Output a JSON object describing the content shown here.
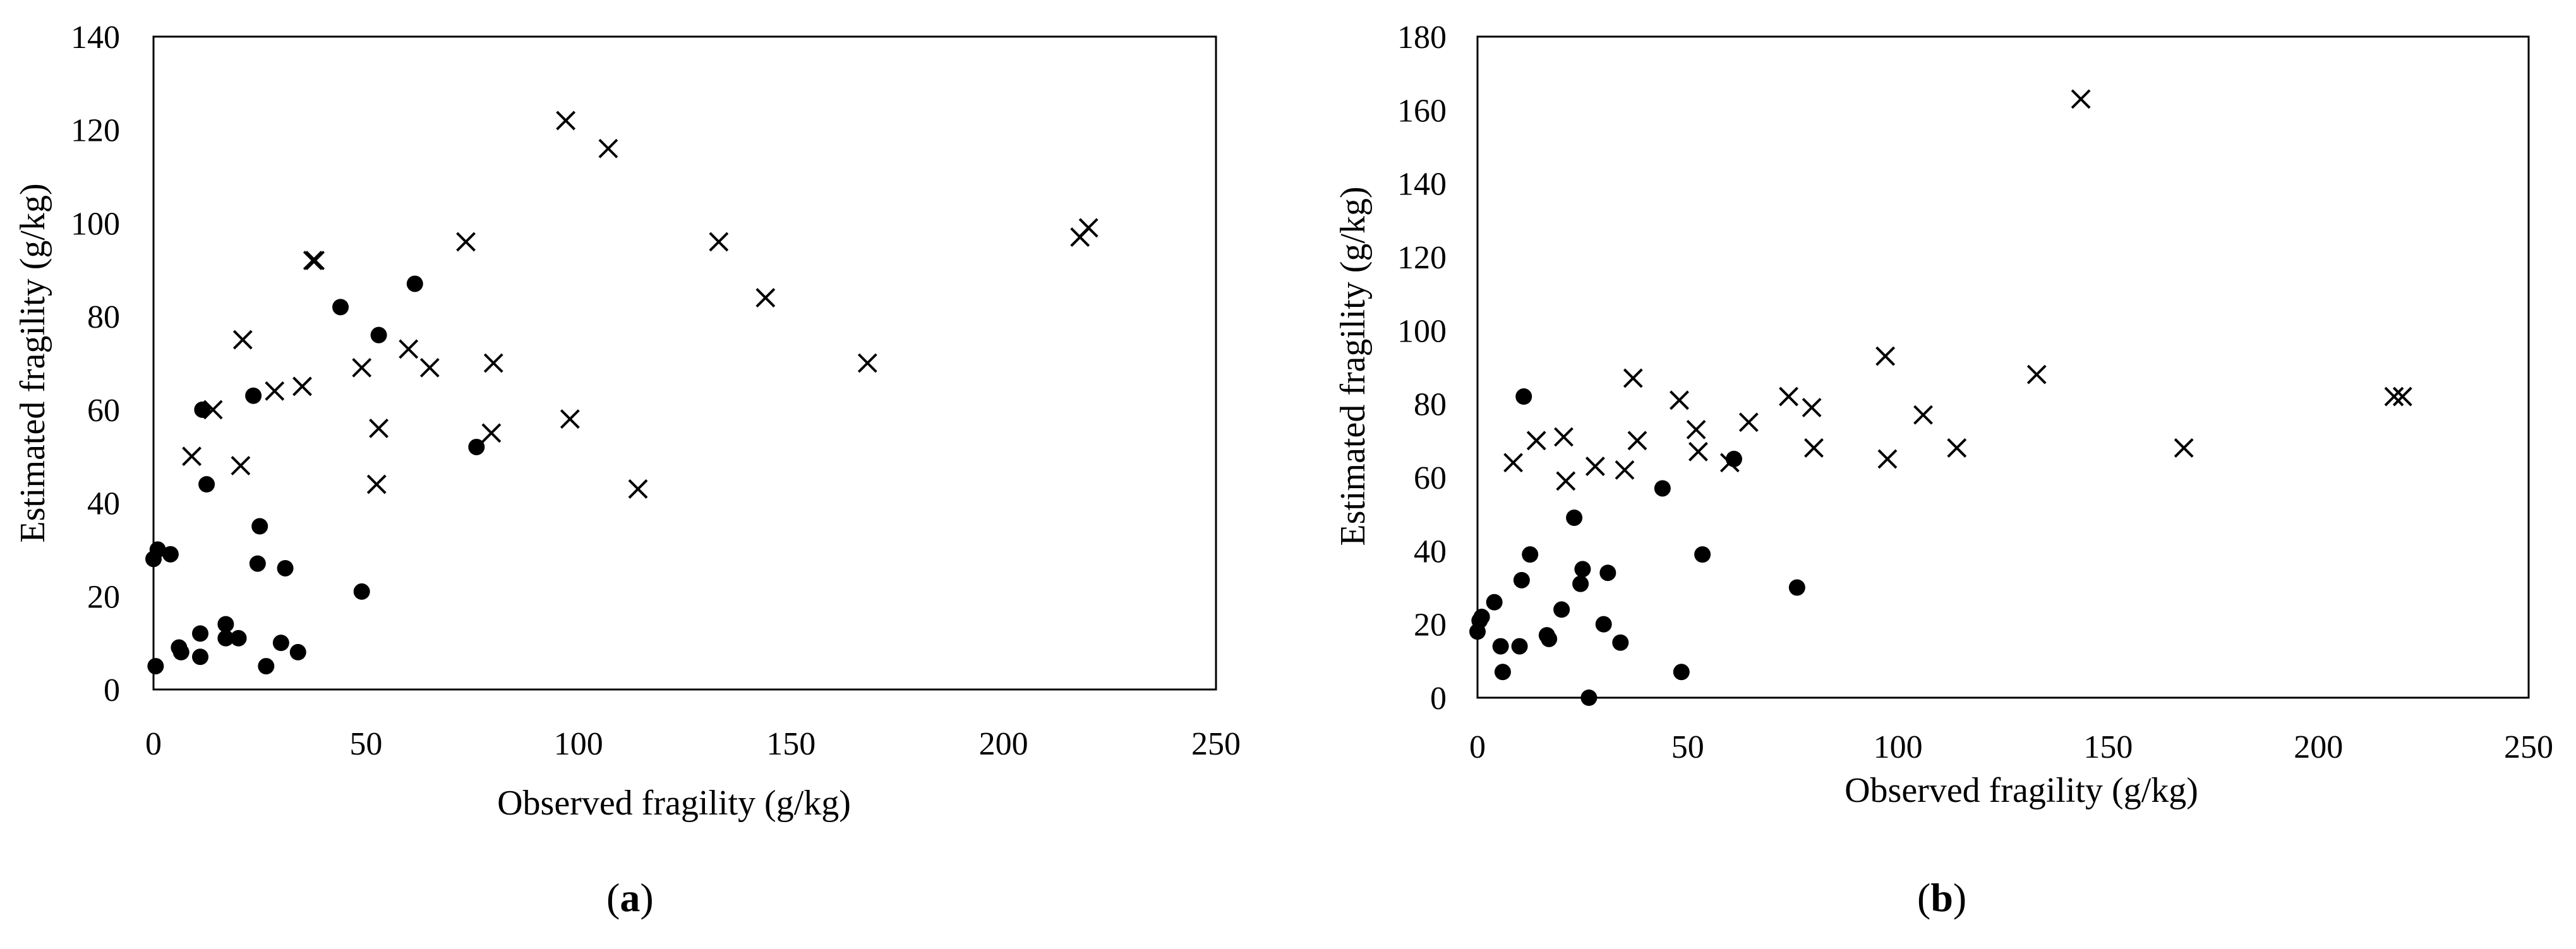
{
  "chart_data": [
    {
      "panel": "a",
      "type": "scatter",
      "xlabel": "Observed fragility (g/kg)",
      "ylabel": "Estimated fragility (g/kg)",
      "xlim": [
        0,
        250
      ],
      "ylim": [
        0,
        140
      ],
      "xticks": [
        0,
        50,
        100,
        150,
        200,
        250
      ],
      "yticks": [
        0,
        20,
        40,
        60,
        80,
        100,
        120,
        140
      ],
      "grid": false,
      "legend": "none",
      "series": [
        {
          "marker": "circle",
          "points": [
            [
              0,
              28
            ],
            [
              1,
              30
            ],
            [
              0.5,
              5
            ],
            [
              4,
              29
            ],
            [
              6,
              9
            ],
            [
              6.5,
              8
            ],
            [
              11,
              12
            ],
            [
              11,
              7
            ],
            [
              11.5,
              60
            ],
            [
              12.5,
              44
            ],
            [
              17,
              14
            ],
            [
              17,
              11
            ],
            [
              20,
              11
            ],
            [
              23.5,
              63
            ],
            [
              24.5,
              27
            ],
            [
              25,
              35
            ],
            [
              26.5,
              5
            ],
            [
              30,
              10
            ],
            [
              31,
              26
            ],
            [
              34,
              8
            ],
            [
              44,
              82
            ],
            [
              49,
              21
            ],
            [
              53,
              76
            ],
            [
              61.5,
              87
            ],
            [
              76,
              52
            ]
          ]
        },
        {
          "marker": "cross",
          "points": [
            [
              9,
              50
            ],
            [
              14,
              60
            ],
            [
              20.5,
              48
            ],
            [
              21,
              75
            ],
            [
              28.5,
              64
            ],
            [
              35,
              65
            ],
            [
              37.5,
              92
            ],
            [
              38,
              92
            ],
            [
              49,
              69
            ],
            [
              52.5,
              44
            ],
            [
              53,
              56
            ],
            [
              60,
              73
            ],
            [
              65,
              69
            ],
            [
              73.5,
              96
            ],
            [
              79.5,
              55
            ],
            [
              80,
              70
            ],
            [
              97,
              122
            ],
            [
              98,
              58
            ],
            [
              107,
              116
            ],
            [
              114,
              43
            ],
            [
              133,
              96
            ],
            [
              144,
              84
            ],
            [
              168,
              70
            ],
            [
              218,
              97
            ],
            [
              220,
              99
            ]
          ]
        }
      ]
    },
    {
      "panel": "b",
      "type": "scatter",
      "xlabel": "Observed fragility (g/kg)",
      "ylabel": "Estimated fragility (g/kg)",
      "xlim": [
        0,
        250
      ],
      "ylim": [
        0,
        180
      ],
      "xticks": [
        0,
        50,
        100,
        150,
        200,
        250
      ],
      "yticks": [
        0,
        20,
        40,
        60,
        80,
        100,
        120,
        140,
        160,
        180
      ],
      "grid": false,
      "legend": "none",
      "series": [
        {
          "marker": "circle",
          "points": [
            [
              0,
              18
            ],
            [
              0.5,
              21
            ],
            [
              1,
              22
            ],
            [
              4,
              26
            ],
            [
              5.5,
              14
            ],
            [
              6,
              7
            ],
            [
              10,
              14
            ],
            [
              10.5,
              32
            ],
            [
              11,
              82
            ],
            [
              12.5,
              39
            ],
            [
              16.5,
              17
            ],
            [
              17,
              16
            ],
            [
              20,
              24
            ],
            [
              23,
              49
            ],
            [
              24.5,
              31
            ],
            [
              25,
              35
            ],
            [
              26.5,
              0
            ],
            [
              30,
              20
            ],
            [
              31,
              34
            ],
            [
              34,
              15
            ],
            [
              44,
              57
            ],
            [
              48.5,
              7
            ],
            [
              53.5,
              39
            ],
            [
              61,
              65
            ],
            [
              76,
              30
            ]
          ]
        },
        {
          "marker": "cross",
          "points": [
            [
              8.5,
              64
            ],
            [
              14,
              70
            ],
            [
              20.5,
              71
            ],
            [
              21,
              59
            ],
            [
              28,
              63
            ],
            [
              35,
              62
            ],
            [
              37,
              87
            ],
            [
              38,
              70
            ],
            [
              48,
              81
            ],
            [
              52,
              73
            ],
            [
              52.5,
              67
            ],
            [
              60,
              64
            ],
            [
              64.5,
              75
            ],
            [
              74,
              82
            ],
            [
              79.5,
              79
            ],
            [
              80,
              68
            ],
            [
              97,
              93
            ],
            [
              97.5,
              65
            ],
            [
              106,
              77
            ],
            [
              114,
              68
            ],
            [
              133,
              88
            ],
            [
              143.5,
              163
            ],
            [
              168,
              68
            ],
            [
              218,
              82
            ],
            [
              220,
              82
            ]
          ]
        }
      ]
    }
  ],
  "captions": [
    {
      "open": "(",
      "letter": "a",
      "close": ")"
    },
    {
      "open": "(",
      "letter": "b",
      "close": ")"
    }
  ]
}
